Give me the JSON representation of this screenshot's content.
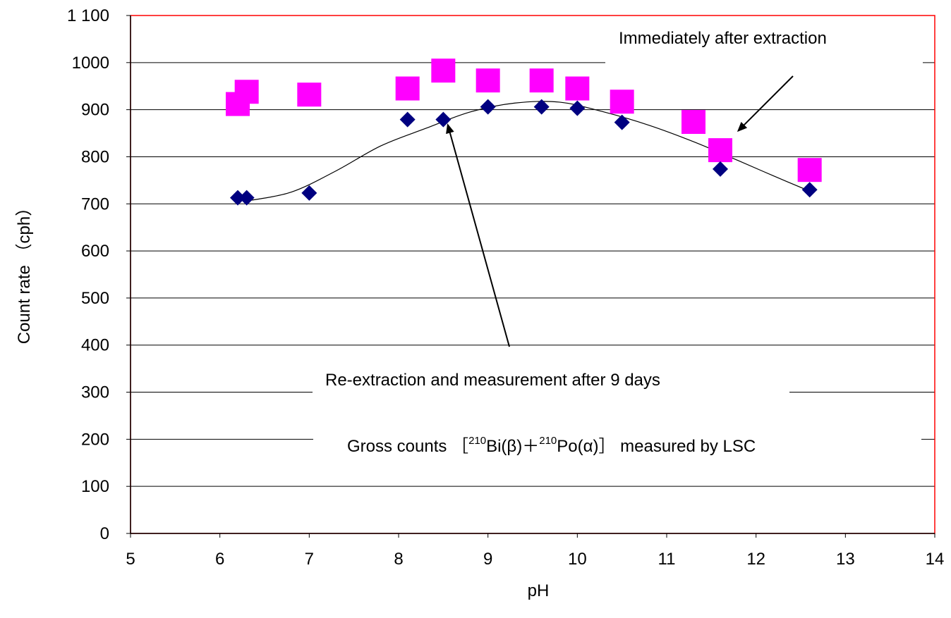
{
  "chart_data": {
    "type": "scatter",
    "xlabel": "pH",
    "ylabel": "Count rate （cph）",
    "xlim": [
      5,
      14
    ],
    "ylim": [
      0,
      1100
    ],
    "xticks": [
      5,
      6,
      7,
      8,
      9,
      10,
      11,
      12,
      13,
      14
    ],
    "yticks": [
      0,
      100,
      200,
      300,
      400,
      500,
      600,
      700,
      800,
      900,
      1000,
      1100
    ],
    "ytick_labels": [
      "0",
      "100",
      "200",
      "300",
      "400",
      "500",
      "600",
      "700",
      "800",
      "900",
      "1000",
      "1 100"
    ],
    "grid": "horizontal",
    "legend": "none",
    "colors": {
      "plot_border": "#ff0000",
      "immediate": "#ff00ff",
      "reextraction": "#000080",
      "fit_line": "#000000",
      "grid": "#000000"
    },
    "series": [
      {
        "marker": "square",
        "points": [
          [
            6.2,
            912
          ],
          [
            6.3,
            938
          ],
          [
            7.0,
            932
          ],
          [
            8.1,
            945
          ],
          [
            8.5,
            983
          ],
          [
            9.0,
            962
          ],
          [
            9.6,
            962
          ],
          [
            10.0,
            945
          ],
          [
            10.5,
            917
          ],
          [
            11.3,
            874
          ],
          [
            11.6,
            814
          ],
          [
            12.6,
            772
          ]
        ]
      },
      {
        "marker": "diamond",
        "points": [
          [
            6.2,
            713
          ],
          [
            6.3,
            713
          ],
          [
            7.0,
            723
          ],
          [
            8.1,
            879
          ],
          [
            8.5,
            879
          ],
          [
            9.0,
            906
          ],
          [
            9.6,
            906
          ],
          [
            10.0,
            903
          ],
          [
            10.5,
            873
          ],
          [
            11.6,
            774
          ],
          [
            12.6,
            730
          ]
        ]
      }
    ],
    "fit_curve": [
      [
        6.3,
        706
      ],
      [
        6.8,
        725
      ],
      [
        7.3,
        770
      ],
      [
        7.8,
        823
      ],
      [
        8.3,
        860
      ],
      [
        8.8,
        895
      ],
      [
        9.3,
        914
      ],
      [
        9.8,
        916
      ],
      [
        10.3,
        895
      ],
      [
        10.8,
        867
      ],
      [
        11.3,
        832
      ],
      [
        11.8,
        792
      ],
      [
        12.2,
        759
      ],
      [
        12.6,
        727
      ]
    ],
    "annotations": [
      {
        "id": "immediate",
        "text": "Immediately after extraction",
        "arrow_tip": [
          11.8,
          855
        ]
      },
      {
        "id": "reextraction",
        "text": "Re-extraction and measurement after 9 days",
        "arrow_tip": [
          8.55,
          868
        ]
      },
      {
        "id": "gross",
        "parts": {
          "prefix": "Gross counts ［",
          "sup1": "210",
          "mid1": "Bi(β)＋",
          "sup2": "210",
          "mid2": "Po(α)］ measured by  LSC"
        }
      }
    ]
  }
}
